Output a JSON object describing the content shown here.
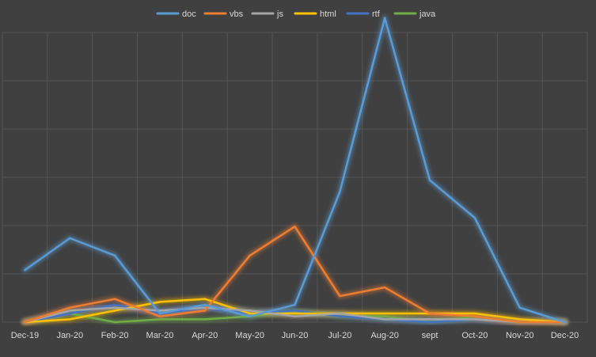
{
  "chart_data": {
    "type": "line",
    "title": "",
    "xlabel": "",
    "ylabel": "",
    "ylim": [
      0,
      100
    ],
    "grid": true,
    "legend_position": "top",
    "background": "#404040",
    "categories": [
      "Dec-19",
      "Jan-20",
      "Feb-20",
      "Mar-20",
      "Apr-20",
      "May-20",
      "Jun-20",
      "Jul-20",
      "Aug-20",
      "sept",
      "Oct-20",
      "Nov-20",
      "Dec-20"
    ],
    "series": [
      {
        "name": "doc",
        "color": "#5B9BD5",
        "values": [
          18,
          29,
          23,
          3,
          6,
          2,
          6,
          45,
          105,
          49,
          36,
          5,
          0
        ]
      },
      {
        "name": "vbs",
        "color": "#ED7D31",
        "values": [
          0,
          5,
          8,
          2,
          4,
          23,
          33,
          9,
          12,
          3,
          2,
          0,
          0
        ]
      },
      {
        "name": "js",
        "color": "#A5A5A5",
        "values": [
          0,
          4,
          5,
          4,
          5,
          4,
          2,
          3,
          1,
          1,
          1,
          0,
          0
        ]
      },
      {
        "name": "html",
        "color": "#FFC000",
        "values": [
          0,
          1,
          4,
          7,
          8,
          3,
          3,
          3,
          3,
          3,
          3,
          1,
          0
        ]
      },
      {
        "name": "rtf",
        "color": "#4472C4",
        "values": [
          0,
          3,
          6,
          3,
          5,
          3,
          4,
          2,
          1,
          0,
          1,
          0,
          0
        ]
      },
      {
        "name": "java",
        "color": "#70AD47",
        "values": [
          0,
          3,
          0,
          1,
          1,
          2,
          4,
          2,
          2,
          0,
          2,
          0,
          0
        ]
      }
    ]
  }
}
